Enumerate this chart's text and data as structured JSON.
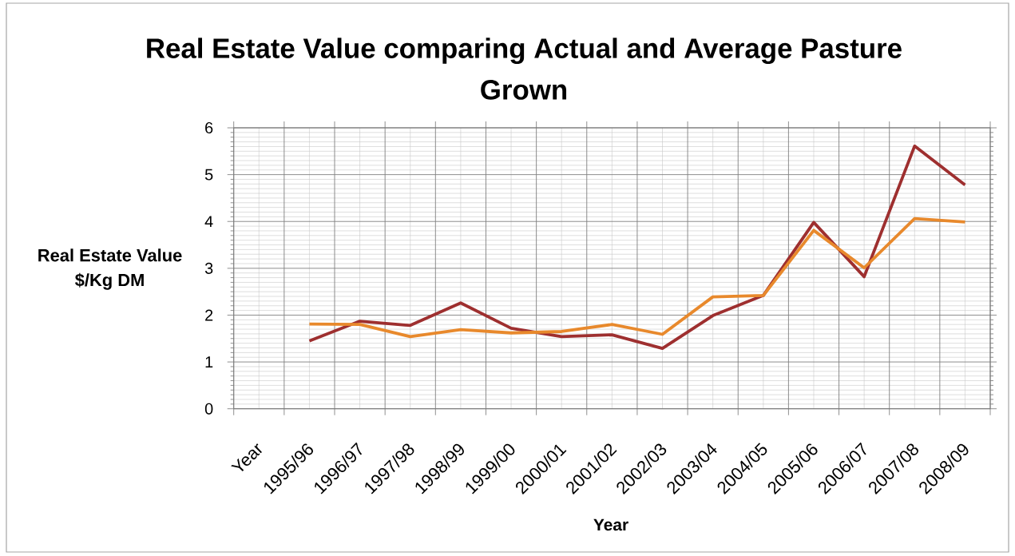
{
  "chart_data": {
    "type": "line",
    "title": "Real Estate Value comparing Actual and Average Pasture Grown",
    "xlabel": "Year",
    "ylabel": "Real Estate Value $/Kg DM",
    "categories": [
      "Year",
      "1995/96",
      "1996/97",
      "1997/98",
      "1998/99",
      "1999/00",
      "2000/01",
      "2001/02",
      "2002/03",
      "2003/04",
      "2004/05",
      "2005/06",
      "2006/07",
      "2007/08",
      "2008/09"
    ],
    "series": [
      {
        "color": "#9e2f2f",
        "values": [
          null,
          1.45,
          1.87,
          1.78,
          2.26,
          1.72,
          1.54,
          1.58,
          1.29,
          1.99,
          2.42,
          3.98,
          2.82,
          5.61,
          4.78
        ]
      },
      {
        "color": "#e8892c",
        "values": [
          null,
          1.81,
          1.8,
          1.54,
          1.69,
          1.62,
          1.65,
          1.8,
          1.59,
          2.39,
          2.42,
          3.81,
          3.01,
          4.06,
          3.99
        ]
      }
    ],
    "ylim": [
      0,
      6
    ],
    "yticks": [
      0,
      1,
      2,
      3,
      4,
      5,
      6
    ],
    "grid": true,
    "marker": "none",
    "line_style": "solid"
  }
}
